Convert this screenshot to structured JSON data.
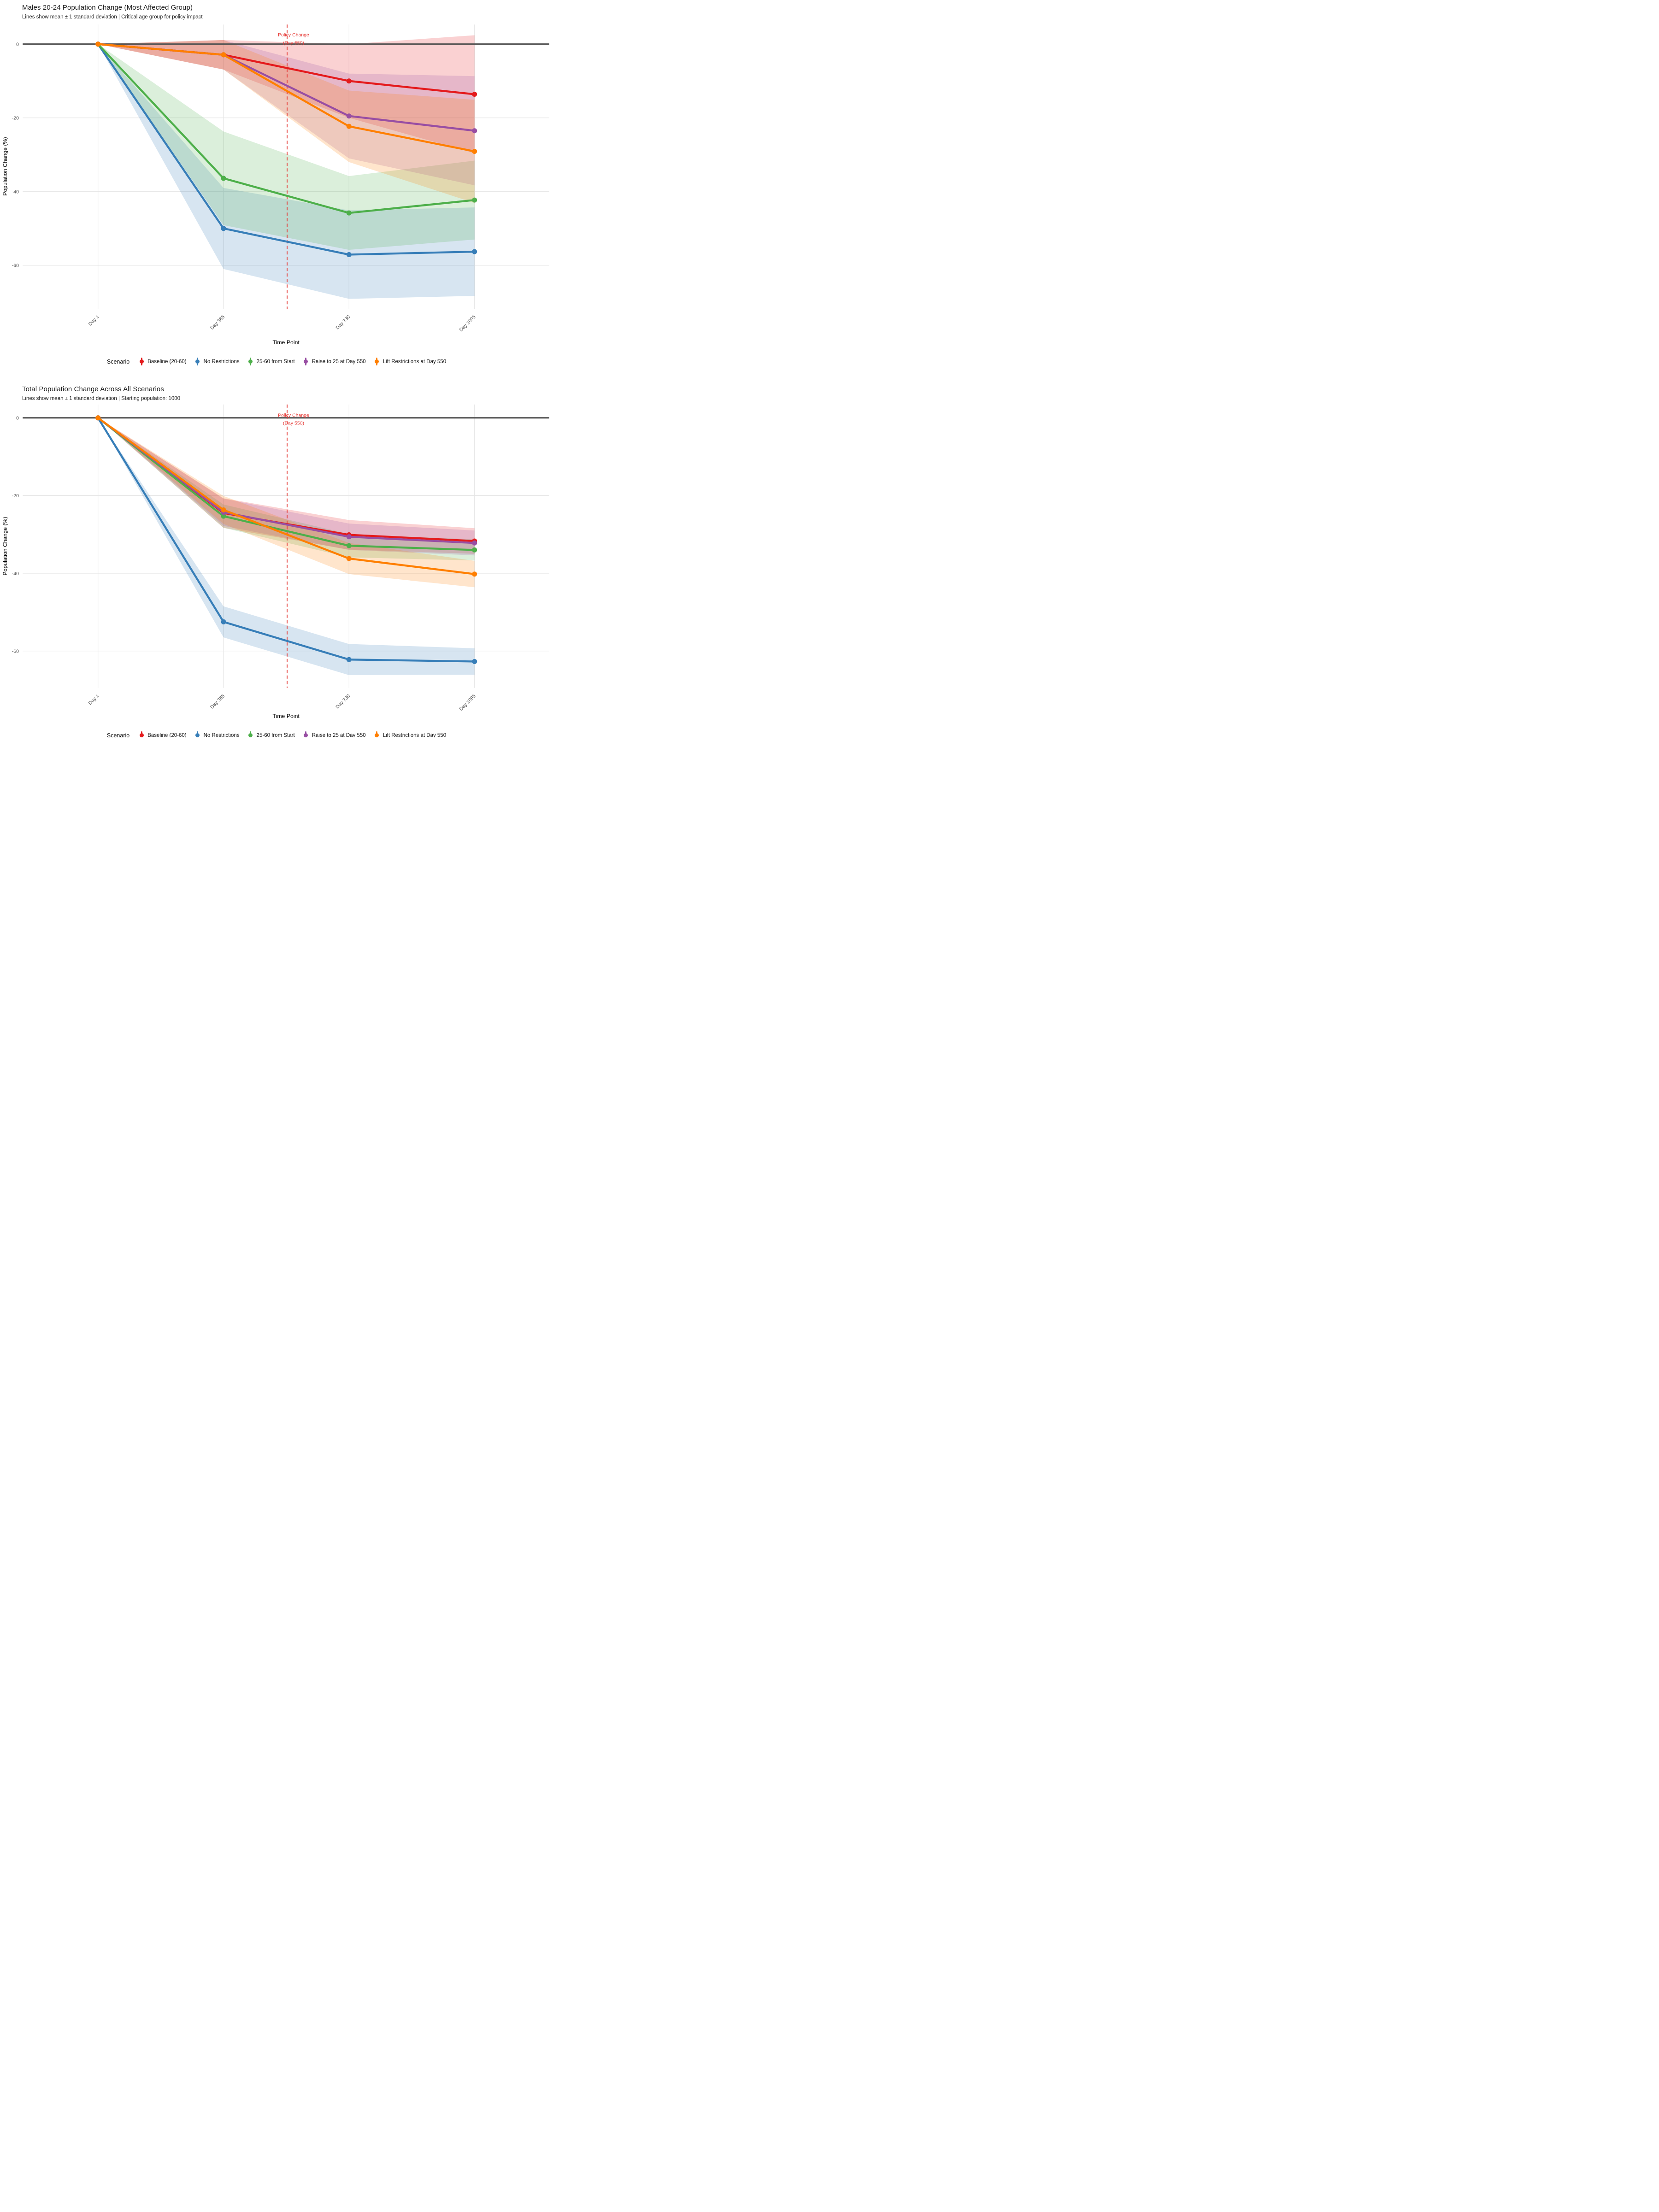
{
  "colors": {
    "background": "#ffffff",
    "grid": "#e5e5e5",
    "zero_line": "#555555",
    "tick_text": "#4d4d4d",
    "title_text": "#1a1a1a",
    "policy": "#e53935"
  },
  "chart_data": [
    {
      "type": "line",
      "title": "Males 20-24 Population Change (Most Affected Group)",
      "subtitle": "Lines show mean ± 1 standard deviation | Critical age group for policy impact",
      "xlabel": "Time Point",
      "ylabel": "Population Change (%)",
      "legend_title": "Scenario",
      "x_categories": [
        "Day 1",
        "Day 365",
        "Day 730",
        "Day 1095"
      ],
      "x_days": [
        1,
        365,
        730,
        1095
      ],
      "y_ticks": [
        0,
        -20,
        -40,
        -60
      ],
      "ylim": [
        5.3,
        -71.7
      ],
      "grid": true,
      "legend_position": "bottom",
      "annotation": {
        "label_line1": "Policy Change",
        "label_line2": "(Day 550)",
        "day": 550
      },
      "series": [
        {
          "name": "Baseline (20-60)",
          "color": "#e41a1c",
          "mean": [
            0,
            -2.9,
            -10.0,
            -13.6
          ],
          "sd": [
            0,
            4.0,
            10.0,
            16.0
          ]
        },
        {
          "name": "No Restrictions",
          "color": "#377eb8",
          "mean": [
            0,
            -50.0,
            -57.1,
            -56.3
          ],
          "sd": [
            0,
            11.0,
            12.0,
            12.0
          ]
        },
        {
          "name": "25-60 from Start",
          "color": "#4daf4a",
          "mean": [
            0,
            -36.4,
            -45.8,
            -42.3
          ],
          "sd": [
            0,
            12.7,
            10.0,
            10.7
          ]
        },
        {
          "name": "Raise to 25 at Day 550",
          "color": "#984ea3",
          "mean": [
            0,
            -2.9,
            -19.5,
            -23.5
          ],
          "sd": [
            0,
            4.0,
            11.5,
            14.8
          ]
        },
        {
          "name": "Lift Restrictions at Day 550",
          "color": "#ff7f00",
          "mean": [
            0,
            -2.9,
            -22.3,
            -29.1
          ],
          "sd": [
            0,
            4.0,
            9.7,
            14.0
          ]
        }
      ]
    },
    {
      "type": "line",
      "title": "Total Population Change Across All Scenarios",
      "subtitle": "Lines show mean ± 1 standard deviation | Starting population: 1000",
      "xlabel": "Time Point",
      "ylabel": "Population Change (%)",
      "legend_title": "Scenario",
      "x_categories": [
        "Day 1",
        "Day 365",
        "Day 730",
        "Day 1095"
      ],
      "x_days": [
        1,
        365,
        730,
        1095
      ],
      "y_ticks": [
        0,
        -20,
        -40,
        -60
      ],
      "ylim": [
        3.4,
        -69.5
      ],
      "grid": true,
      "legend_position": "bottom",
      "annotation": {
        "label_line1": "Policy Change",
        "label_line2": "(Day 550)",
        "day": 550
      },
      "series": [
        {
          "name": "Baseline (20-60)",
          "color": "#e41a1c",
          "mean": [
            0,
            -24.5,
            -30.1,
            -31.7
          ],
          "sd": [
            0,
            3.8,
            3.8,
            3.3
          ]
        },
        {
          "name": "No Restrictions",
          "color": "#377eb8",
          "mean": [
            0,
            -52.5,
            -62.2,
            -62.7
          ],
          "sd": [
            0,
            4.0,
            4.0,
            3.4
          ]
        },
        {
          "name": "25-60 from Start",
          "color": "#4daf4a",
          "mean": [
            0,
            -25.3,
            -32.9,
            -34.0
          ],
          "sd": [
            0,
            3.0,
            3.0,
            2.7
          ]
        },
        {
          "name": "Raise to 25 at Day 550",
          "color": "#984ea3",
          "mean": [
            0,
            -24.3,
            -30.6,
            -32.2
          ],
          "sd": [
            0,
            3.5,
            3.4,
            3.2
          ]
        },
        {
          "name": "Lift Restrictions at Day 550",
          "color": "#ff7f00",
          "mean": [
            0,
            -23.7,
            -36.2,
            -40.2
          ],
          "sd": [
            0,
            3.6,
            4.0,
            3.4
          ]
        }
      ]
    }
  ]
}
